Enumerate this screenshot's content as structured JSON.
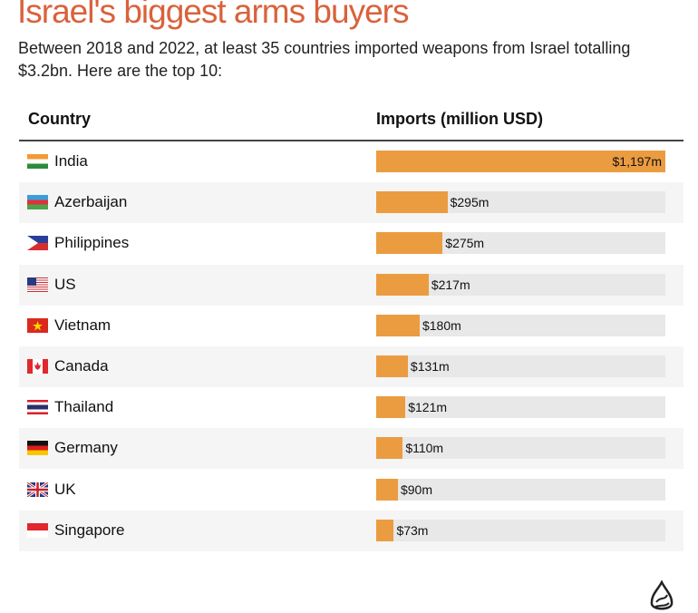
{
  "title": "Israel's biggest arms buyers",
  "subtitle": "Between 2018 and 2022, at least 35 countries imported weapons from Israel totalling $3.2bn. Here are the top 10:",
  "chart_data": {
    "type": "bar",
    "orientation": "horizontal",
    "column_headers": [
      "Country",
      "Imports (million USD)"
    ],
    "categories": [
      "India",
      "Azerbaijan",
      "Philippines",
      "US",
      "Vietnam",
      "Canada",
      "Thailand",
      "Germany",
      "UK",
      "Singapore"
    ],
    "values": [
      1197,
      295,
      275,
      217,
      180,
      131,
      121,
      110,
      90,
      73
    ],
    "labels": [
      "$1,197m",
      "$295m",
      "$275m",
      "$217m",
      "$180m",
      "$131m",
      "$121m",
      "$110m",
      "$90m",
      "$73m"
    ],
    "xlim": [
      0,
      1197
    ],
    "bar_color": "#eb9c40",
    "track_color": "#e8e8e8"
  },
  "flags": [
    "india-flag",
    "azerbaijan-flag",
    "philippines-flag",
    "us-flag",
    "vietnam-flag",
    "canada-flag",
    "thailand-flag",
    "germany-flag",
    "uk-flag",
    "singapore-flag"
  ],
  "title_color": "#d9623b",
  "logo": "Al Jazeera"
}
